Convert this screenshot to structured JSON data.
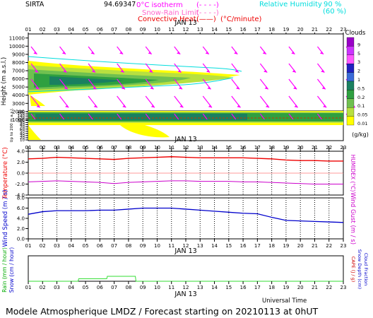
{
  "header": {
    "station": "SIRTA",
    "coords": "94.69347",
    "zero_isotherm_label": "0°C isotherm",
    "zero_isotherm_legend": "(- - - -)",
    "snow_rain_label": "Snow-Rain Limit",
    "snow_rain_legend": "(- - - -)",
    "convective_label": "Convective Heat.",
    "convective_legend": "(——)",
    "convective_unit": "(°C/minute)",
    "humidity_label": "Relative Humidity",
    "humidity_90": "90 %",
    "humidity_60": "(60 %)"
  },
  "hours": [
    "01",
    "02",
    "03",
    "04",
    "05",
    "06",
    "07",
    "08",
    "09",
    "10",
    "11",
    "12",
    "13",
    "14",
    "15",
    "16",
    "17",
    "18",
    "19",
    "20",
    "21",
    "22",
    "23"
  ],
  "date_label": "JAN 13",
  "clouds_legend": {
    "title": "Clouds",
    "unit": "(g/kg)",
    "ticks": [
      "9",
      "5",
      "3",
      "2",
      "1",
      "0.5",
      "0.2",
      "0.1",
      "0.05",
      "0.01"
    ],
    "colors": [
      "#9a00c8",
      "#cc33ff",
      "#ff55ff",
      "#2020c0",
      "#3a6ad8",
      "#1a8060",
      "#2fa040",
      "#70c050",
      "#b8e040",
      "#ffff00"
    ]
  },
  "footer": {
    "universal_time": "Universal Time",
    "caption": "Modele Atmospherique LMDZ / Forecast starting on 20210113 at 0hUT"
  },
  "chart_data": [
    {
      "type": "heatmap",
      "name": "upper-cloud-panel",
      "ylabel": "Height (m a.s.l.)",
      "ylim": [
        0,
        11500
      ],
      "y_ticks": [
        1000,
        2000,
        3000,
        4000,
        5000,
        6000,
        7000,
        8000,
        9000,
        10000,
        11000
      ],
      "x_range": [
        1,
        23
      ]
    },
    {
      "type": "heatmap",
      "name": "lower-cloud-panel",
      "ylabel": "Up to 200 m a.s.l.",
      "y_ticks": [
        10,
        20,
        30,
        40,
        50,
        60,
        70,
        80,
        90,
        100,
        120,
        140,
        150,
        200
      ],
      "x_range": [
        1,
        23
      ]
    },
    {
      "type": "line",
      "name": "temperature-panel",
      "ylabel": "Temperature (°C)",
      "y2label": "HUMIDEX (°C)",
      "ylim": [
        -4.0,
        4.0
      ],
      "y_ticks": [
        "4.0",
        "2.0",
        "0.0",
        "-2.0",
        "-4.0"
      ],
      "x": [
        1,
        2,
        3,
        4,
        5,
        6,
        7,
        8,
        9,
        10,
        11,
        12,
        13,
        14,
        15,
        16,
        17,
        18,
        19,
        20,
        21,
        22,
        23
      ],
      "series": [
        {
          "values": [
            2.6,
            2.7,
            2.9,
            2.8,
            2.7,
            2.6,
            2.5,
            2.7,
            2.8,
            2.9,
            3.0,
            2.9,
            2.8,
            2.8,
            2.8,
            2.8,
            2.7,
            2.6,
            2.4,
            2.3,
            2.3,
            2.2,
            2.2
          ]
        },
        {
          "values": [
            -1.6,
            -1.5,
            -1.4,
            -1.5,
            -1.6,
            -1.7,
            -1.9,
            -1.7,
            -1.6,
            -1.5,
            -1.4,
            -1.4,
            -1.5,
            -1.5,
            -1.5,
            -1.6,
            -1.6,
            -1.7,
            -1.8,
            -1.9,
            -2.0,
            -2.0,
            -2.0
          ]
        }
      ]
    },
    {
      "type": "line",
      "name": "wind-panel",
      "ylabel": "Wind Speed (m / s)",
      "y2label": "Wind Gust (m / s)",
      "ylim": [
        0,
        8.0
      ],
      "y_ticks": [
        "8.0",
        "6.0",
        "4.0",
        "2.0",
        "0.0"
      ],
      "x": [
        1,
        2,
        3,
        4,
        5,
        6,
        7,
        8,
        9,
        10,
        11,
        12,
        13,
        14,
        15,
        16,
        17,
        18,
        19,
        20,
        21,
        22,
        23
      ],
      "series": [
        {
          "values": [
            4.8,
            5.3,
            5.5,
            5.5,
            5.5,
            5.6,
            5.6,
            5.8,
            6.0,
            6.0,
            6.0,
            5.8,
            5.6,
            5.4,
            5.2,
            5.0,
            4.9,
            4.2,
            3.6,
            3.5,
            3.4,
            3.3,
            3.2
          ]
        }
      ]
    },
    {
      "type": "bar",
      "name": "precip-panel",
      "ylabel": "Rain (mm / hour)",
      "ylabel2": "Snow (cm / hour)",
      "y2label": "CAPE (J / g)",
      "y2label2": "Snow Depth (cm)",
      "y2label3": "Cloud Fraction",
      "x": [
        1,
        2,
        3,
        4,
        5,
        6,
        7,
        8,
        9,
        10,
        11,
        12,
        13,
        14,
        15,
        16,
        17,
        18,
        19,
        20,
        21,
        22,
        23
      ],
      "values": [
        0.0,
        0.0,
        0.0,
        0.0,
        0.1,
        0.1,
        0.2,
        0.2,
        0.0,
        0.0,
        0.0,
        0.0,
        0.0,
        0.0,
        0.0,
        0.0,
        0.0,
        0.0,
        0.0,
        0.0,
        0.0,
        0.0,
        0.0
      ]
    }
  ]
}
